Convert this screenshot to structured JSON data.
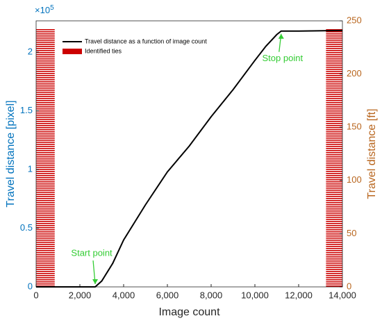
{
  "chart_data": {
    "type": "line",
    "x_label": "Image count",
    "y_label": "Travel distance [pixel]",
    "y2_label": "Travel distance [ft]",
    "y_multiplier": {
      "base": "×10",
      "power": "5"
    },
    "xlim": [
      0,
      14000
    ],
    "xticks": [
      0,
      {
        "value": 2000,
        "label": "2,000"
      },
      {
        "value": 4000,
        "label": "4,000"
      },
      {
        "value": 6000,
        "label": "6,000"
      },
      {
        "value": 8000,
        "label": "8,000"
      },
      {
        "value": 10000,
        "label": "10,000"
      },
      {
        "value": 12000,
        "label": "12,000"
      },
      {
        "value": 14000,
        "label": "14,000"
      }
    ],
    "ylim": [
      0,
      2.267
    ],
    "yticks": [
      0,
      0.5,
      1,
      1.5,
      2
    ],
    "y2lim": [
      0,
      250
    ],
    "y2ticks": [
      0,
      50,
      100,
      150,
      200,
      250
    ],
    "y_color": "#0072bd",
    "y2_color": "#b8651d",
    "legend": "upper left",
    "series": [
      {
        "name": "Travel distance as a function of image count",
        "color": "#000000",
        "x": [
          0,
          2700,
          3000,
          3500,
          4000,
          5000,
          6000,
          7000,
          8000,
          9000,
          10000,
          10500,
          11000,
          11200,
          12000,
          14000
        ],
        "values": [
          0,
          0,
          0.05,
          0.2,
          0.4,
          0.7,
          0.98,
          1.2,
          1.45,
          1.68,
          1.93,
          2.05,
          2.15,
          2.18,
          2.18,
          2.185
        ]
      }
    ],
    "ties": {
      "name": "Identified ties",
      "color": "#cc0000",
      "ranges": [
        [
          0,
          850
        ],
        [
          13250,
          14000
        ]
      ],
      "height": 2.2
    },
    "annotations": [
      {
        "text": "Start point",
        "x": 2700,
        "y": 0,
        "color": "#33cc33"
      },
      {
        "text": "Stop point",
        "x": 11200,
        "y": 2.18,
        "color": "#33cc33"
      }
    ]
  }
}
